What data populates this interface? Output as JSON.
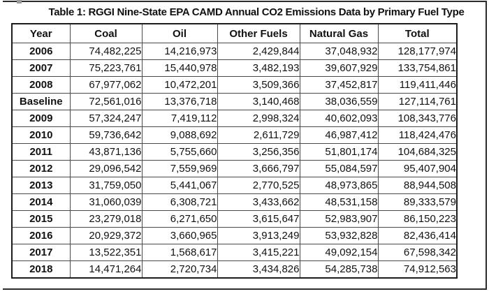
{
  "chart_data": {
    "type": "table",
    "title": "Table 1: RGGI Nine-State EPA CAMD Annual CO2 Emissions Data by Primary Fuel Type",
    "columns": [
      "Year",
      "Coal",
      "Oil",
      "Other Fuels",
      "Natural Gas",
      "Total"
    ],
    "rows": [
      [
        "2006",
        "74,482,225",
        "14,216,973",
        "2,429,844",
        "37,048,932",
        "128,177,974"
      ],
      [
        "2007",
        "75,223,761",
        "15,440,978",
        "3,482,193",
        "39,607,929",
        "133,754,861"
      ],
      [
        "2008",
        "67,977,062",
        "10,472,201",
        "3,509,366",
        "37,452,817",
        "119,411,446"
      ],
      [
        "Baseline",
        "72,561,016",
        "13,376,718",
        "3,140,468",
        "38,036,559",
        "127,114,761"
      ],
      [
        "2009",
        "57,324,247",
        "7,419,112",
        "2,998,324",
        "40,602,093",
        "108,343,776"
      ],
      [
        "2010",
        "59,736,642",
        "9,088,692",
        "2,611,729",
        "46,987,412",
        "118,424,476"
      ],
      [
        "2011",
        "43,871,136",
        "5,755,660",
        "3,256,356",
        "51,801,174",
        "104,684,325"
      ],
      [
        "2012",
        "29,096,542",
        "7,559,969",
        "3,666,797",
        "55,084,597",
        "95,407,904"
      ],
      [
        "2013",
        "31,759,050",
        "5,441,067",
        "2,770,525",
        "48,973,865",
        "88,944,508"
      ],
      [
        "2014",
        "31,060,039",
        "6,308,721",
        "3,433,662",
        "48,531,158",
        "89,333,579"
      ],
      [
        "2015",
        "23,279,018",
        "6,271,650",
        "3,615,647",
        "52,983,907",
        "86,150,223"
      ],
      [
        "2016",
        "20,929,372",
        "3,660,965",
        "3,913,249",
        "53,932,828",
        "82,436,414"
      ],
      [
        "2017",
        "13,522,351",
        "1,568,617",
        "3,415,221",
        "49,092,154",
        "67,598,342"
      ],
      [
        "2018",
        "14,471,264",
        "2,720,734",
        "3,434,826",
        "54,285,738",
        "74,912,563"
      ]
    ],
    "column_alignment": [
      "center",
      "right",
      "right",
      "right",
      "right",
      "right"
    ],
    "colors": {
      "text": "#111111",
      "grid_line": "#4a4a4a",
      "outer_border": "#2b2b2b",
      "background": "#ffffff"
    },
    "layout": {
      "grid": true,
      "header_bold": true,
      "year_column_bold": true
    }
  }
}
